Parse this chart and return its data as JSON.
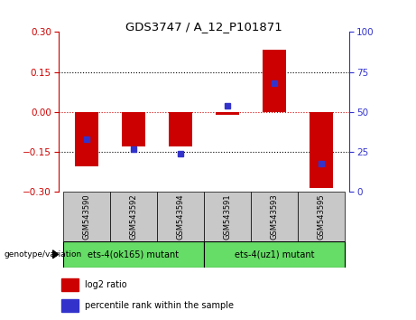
{
  "title": "GDS3747 / A_12_P101871",
  "samples": [
    "GSM543590",
    "GSM543592",
    "GSM543594",
    "GSM543591",
    "GSM543593",
    "GSM543595"
  ],
  "log2_ratios": [
    -0.205,
    -0.13,
    -0.13,
    -0.01,
    0.235,
    -0.285
  ],
  "percentile_ranks": [
    33,
    27,
    24,
    54,
    68,
    18
  ],
  "group1_label": "ets-4(ok165) mutant",
  "group2_label": "ets-4(uz1) mutant",
  "group1_indices": [
    0,
    1,
    2
  ],
  "group2_indices": [
    3,
    4,
    5
  ],
  "group_color": "#66dd66",
  "sample_box_color": "#c8c8c8",
  "ylim_left": [
    -0.3,
    0.3
  ],
  "ylim_right": [
    0,
    100
  ],
  "yticks_left": [
    -0.3,
    -0.15,
    0.0,
    0.15,
    0.3
  ],
  "yticks_right": [
    0,
    25,
    50,
    75,
    100
  ],
  "bar_color": "#cc0000",
  "dot_color": "#3333cc",
  "bar_width": 0.5,
  "left_axis_color": "#cc0000",
  "right_axis_color": "#3333cc",
  "legend_bar_label": "log2 ratio",
  "legend_dot_label": "percentile rank within the sample",
  "genotype_label": "genotype/variation"
}
